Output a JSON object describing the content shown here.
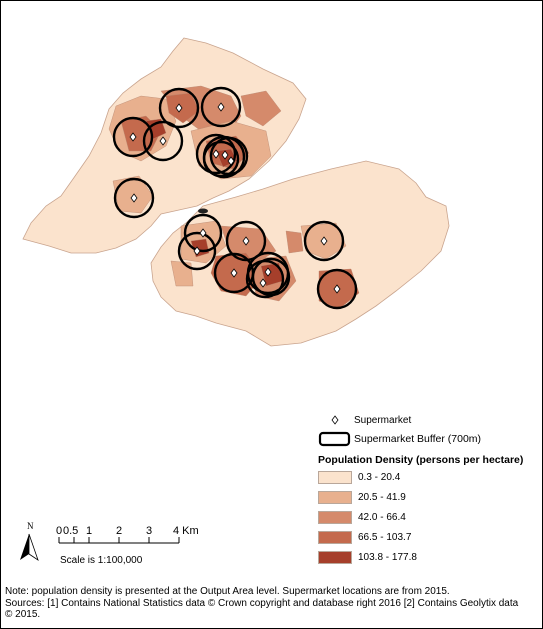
{
  "legend": {
    "supermarket": "Supermarket",
    "buffer": "Supermarket Buffer (700m)",
    "density_title": "Population Density (persons per hectare)",
    "classes": [
      {
        "label": "0.3 - 20.4",
        "color": "#fbe3cd"
      },
      {
        "label": "20.5 - 41.9",
        "color": "#e8b08e"
      },
      {
        "label": "42.0 - 66.4",
        "color": "#d58a6b"
      },
      {
        "label": "66.5 - 103.7",
        "color": "#c46a4d"
      },
      {
        "label": "103.8 - 177.8",
        "color": "#a63f2b"
      }
    ]
  },
  "scale": {
    "ticks": [
      "0",
      "0.5",
      "1",
      "2",
      "3",
      "4 Km"
    ],
    "ratio": "Scale is 1:100,000",
    "north": "N"
  },
  "note": [
    "Note: population density is presented at the Output Area level. Supermarket locations are from 2015.",
    "Sources: [1] Contains National Statistics data © Crown copyright and database right 2016 [2] Contains Geolytix data",
    "© 2015."
  ]
}
